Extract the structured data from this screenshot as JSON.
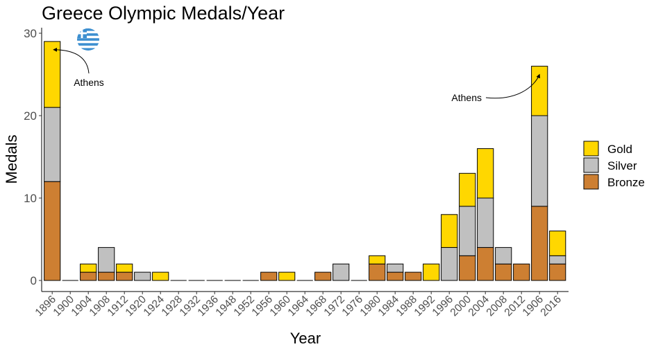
{
  "chart_data": {
    "type": "bar",
    "stacked": true,
    "title": "Greece Olympic Medals/Year",
    "xlabel": "Year",
    "ylabel": "Medals",
    "ylim": [
      0,
      30
    ],
    "yticks": [
      0,
      10,
      20,
      30
    ],
    "grid": false,
    "legend_position": "right",
    "categories": [
      "1896",
      "1900",
      "1904",
      "1908",
      "1912",
      "1920",
      "1924",
      "1928",
      "1932",
      "1936",
      "1948",
      "1952",
      "1956",
      "1960",
      "1964",
      "1968",
      "1972",
      "1976",
      "1980",
      "1984",
      "1988",
      "1992",
      "1996",
      "2000",
      "2004",
      "2008",
      "2012",
      "1906",
      "2016"
    ],
    "series": [
      {
        "name": "Bronze",
        "color": "#CD7F32",
        "values": [
          12,
          0,
          1,
          1,
          1,
          0,
          0,
          0,
          0,
          0,
          0,
          0,
          1,
          0,
          0,
          1,
          0,
          0,
          2,
          1,
          1,
          0,
          0,
          3,
          4,
          2,
          2,
          9,
          2
        ]
      },
      {
        "name": "Silver",
        "color": "#C0C0C0",
        "values": [
          9,
          0,
          0,
          3,
          0,
          1,
          0,
          0,
          0,
          0,
          0,
          0,
          0,
          0,
          0,
          0,
          2,
          0,
          0,
          1,
          0,
          0,
          4,
          6,
          6,
          2,
          0,
          11,
          1
        ]
      },
      {
        "name": "Gold",
        "color": "#FFD700",
        "values": [
          8,
          0,
          1,
          0,
          1,
          0,
          1,
          0,
          0,
          0,
          0,
          0,
          0,
          1,
          0,
          0,
          0,
          0,
          1,
          0,
          0,
          2,
          4,
          4,
          6,
          0,
          0,
          6,
          3
        ]
      }
    ],
    "legend": [
      "Gold",
      "Silver",
      "Bronze"
    ],
    "annotations": [
      {
        "text": "Athens",
        "category": "1896",
        "value": 28
      },
      {
        "text": "Athens",
        "category": "1906",
        "value": 25
      }
    ],
    "logo": "greece-flag-icon"
  }
}
